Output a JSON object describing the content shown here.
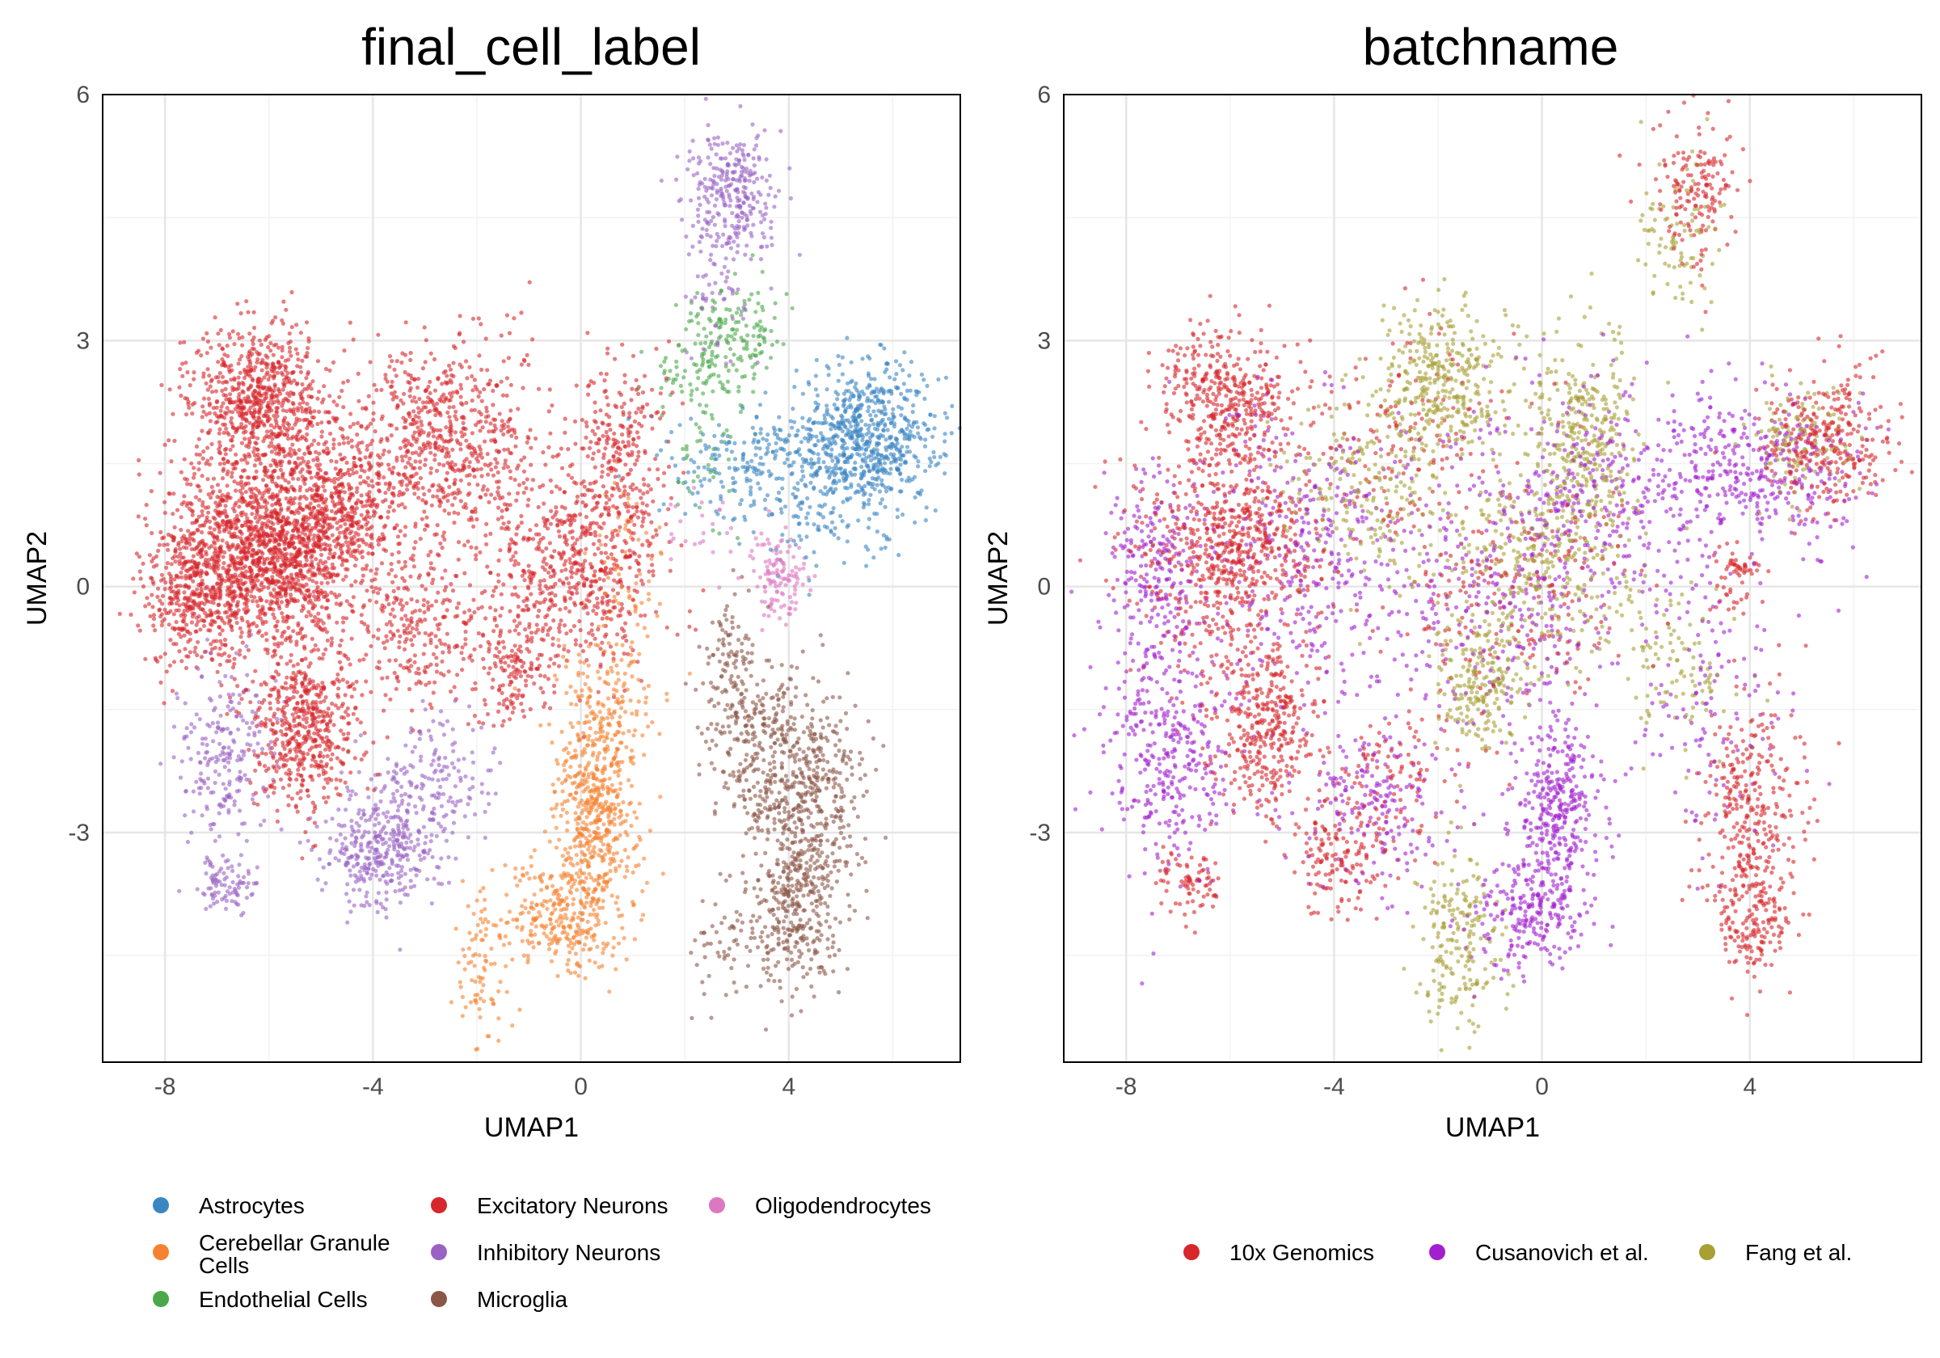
{
  "chart_data": [
    {
      "type": "scatter",
      "title": "final_cell_label",
      "xlabel": "UMAP1",
      "ylabel": "UMAP2",
      "xlim": [
        -9.2,
        7.3
      ],
      "ylim": [
        -5.8,
        6.0
      ],
      "xticks": [
        -8,
        -4,
        0,
        4
      ],
      "xtick_labels": [
        "-8",
        "-4",
        "0",
        "4"
      ],
      "yticks": [
        -3,
        0,
        3,
        6
      ],
      "ytick_labels": [
        "-3",
        "0",
        "3",
        "6"
      ],
      "grid": true,
      "legend_position": "bottom",
      "series": [
        {
          "name": "Astrocytes",
          "color": "#3a86c3",
          "clusters": [
            [
              5.5,
              1.8,
              0.7,
              0.45,
              700
            ],
            [
              3.6,
              1.5,
              0.9,
              0.35,
              250
            ],
            [
              4.6,
              0.8,
              0.7,
              0.3,
              60
            ]
          ]
        },
        {
          "name": "Cerebellar Granule Cells",
          "color": "#f58231",
          "clusters": [
            [
              0.3,
              -2.7,
              0.4,
              0.6,
              450
            ],
            [
              -0.3,
              -4.0,
              0.6,
              0.35,
              320
            ],
            [
              0.4,
              -1.5,
              0.45,
              0.5,
              160
            ],
            [
              -1.9,
              -4.6,
              0.25,
              0.5,
              90
            ],
            [
              0.9,
              0.1,
              0.4,
              0.6,
              80
            ]
          ]
        },
        {
          "name": "Endothelial Cells",
          "color": "#4aa84a",
          "clusters": [
            [
              2.9,
              3.0,
              0.45,
              0.35,
              160
            ],
            [
              2.4,
              1.9,
              0.4,
              0.5,
              60
            ],
            [
              1.8,
              2.6,
              0.4,
              0.2,
              30
            ]
          ]
        },
        {
          "name": "Excitatory Neurons",
          "color": "#d7262c",
          "clusters": [
            [
              -6.0,
              0.5,
              0.95,
              0.65,
              1700
            ],
            [
              -6.2,
              2.3,
              0.6,
              0.45,
              650
            ],
            [
              -2.6,
              1.8,
              0.9,
              0.6,
              650
            ],
            [
              -4.6,
              0.9,
              0.7,
              0.55,
              450
            ],
            [
              -5.3,
              -1.7,
              0.5,
              0.5,
              550
            ],
            [
              -7.5,
              -0.1,
              0.45,
              0.4,
              350
            ],
            [
              -0.2,
              0.2,
              0.9,
              0.6,
              600
            ],
            [
              0.7,
              1.6,
              0.45,
              0.6,
              260
            ],
            [
              -1.2,
              -1.0,
              0.35,
              0.35,
              140
            ],
            [
              -3.0,
              -0.6,
              0.7,
              0.5,
              250
            ]
          ]
        },
        {
          "name": "Inhibitory Neurons",
          "color": "#9a62c4",
          "clusters": [
            [
              2.9,
              4.8,
              0.45,
              0.45,
              300
            ],
            [
              -3.8,
              -3.2,
              0.55,
              0.4,
              380
            ],
            [
              -6.8,
              -3.6,
              0.3,
              0.2,
              90
            ],
            [
              -6.8,
              -2.1,
              0.5,
              0.55,
              220
            ],
            [
              -2.7,
              -2.3,
              0.6,
              0.4,
              140
            ],
            [
              2.6,
              3.4,
              0.3,
              0.4,
              50
            ]
          ]
        },
        {
          "name": "Microglia",
          "color": "#8c5647",
          "clusters": [
            [
              4.3,
              -2.6,
              0.55,
              0.7,
              550
            ],
            [
              4.1,
              -4.0,
              0.4,
              0.45,
              250
            ],
            [
              3.2,
              -1.8,
              0.5,
              0.5,
              200
            ],
            [
              2.9,
              -0.8,
              0.3,
              0.4,
              80
            ],
            [
              3.0,
              -4.3,
              0.4,
              0.4,
              70
            ]
          ]
        },
        {
          "name": "Oligodendrocytes",
          "color": "#dd77c0",
          "clusters": [
            [
              3.8,
              0.1,
              0.3,
              0.25,
              120
            ],
            [
              2.3,
              0.7,
              0.4,
              0.3,
              25
            ]
          ]
        }
      ]
    },
    {
      "type": "scatter",
      "title": "batchname",
      "xlabel": "UMAP1",
      "ylabel": "UMAP2",
      "xlim": [
        -9.2,
        7.3
      ],
      "ylim": [
        -5.8,
        6.0
      ],
      "xticks": [
        -8,
        -4,
        0,
        4
      ],
      "xtick_labels": [
        "-8",
        "-4",
        "0",
        "4"
      ],
      "yticks": [
        -3,
        0,
        3,
        6
      ],
      "ytick_labels": [
        "-3",
        "0",
        "3",
        "6"
      ],
      "grid": true,
      "legend_position": "bottom",
      "series": [
        {
          "name": "10x Genomics",
          "color": "#d7262c",
          "clusters": [
            [
              -6.1,
              2.3,
              0.6,
              0.45,
              400
            ],
            [
              -6.0,
              0.4,
              0.85,
              0.65,
              700
            ],
            [
              -5.3,
              -1.8,
              0.5,
              0.5,
              350
            ],
            [
              -6.8,
              -3.6,
              0.3,
              0.2,
              80
            ],
            [
              -3.9,
              -3.3,
              0.45,
              0.35,
              150
            ],
            [
              4.0,
              -2.7,
              0.5,
              0.7,
              300
            ],
            [
              4.0,
              -4.0,
              0.35,
              0.4,
              160
            ],
            [
              5.5,
              1.8,
              0.6,
              0.4,
              300
            ],
            [
              3.8,
              0.1,
              0.25,
              0.2,
              60
            ],
            [
              3.0,
              4.9,
              0.4,
              0.45,
              160
            ],
            [
              -2.6,
              1.8,
              0.9,
              0.6,
              150
            ],
            [
              -0.5,
              0.0,
              1.2,
              0.8,
              200
            ],
            [
              -2.8,
              -2.4,
              0.6,
              0.45,
              100
            ]
          ]
        },
        {
          "name": "Cusanovich et al.",
          "color": "#a11fcf",
          "clusters": [
            [
              0.3,
              -2.7,
              0.4,
              0.6,
              350
            ],
            [
              -0.3,
              -4.0,
              0.55,
              0.35,
              220
            ],
            [
              -7.2,
              -2.0,
              0.6,
              0.8,
              350
            ],
            [
              -7.5,
              0.2,
              0.5,
              0.6,
              200
            ],
            [
              -4.5,
              0.5,
              1.2,
              0.9,
              400
            ],
            [
              1.0,
              1.0,
              1.4,
              0.8,
              450
            ],
            [
              3.8,
              1.5,
              1.0,
              0.4,
              250
            ],
            [
              -3.2,
              -2.6,
              0.8,
              0.6,
              200
            ],
            [
              -1.0,
              -0.5,
              1.0,
              0.7,
              200
            ],
            [
              5.2,
              1.3,
              0.6,
              0.5,
              90
            ],
            [
              3.2,
              -1.5,
              0.7,
              0.8,
              120
            ]
          ]
        },
        {
          "name": "Fang et al.",
          "color": "#a8a035",
          "clusters": [
            [
              -2.0,
              2.5,
              0.6,
              0.5,
              350
            ],
            [
              0.8,
              1.8,
              0.5,
              0.6,
              300
            ],
            [
              -1.2,
              -1.2,
              0.4,
              0.4,
              200
            ],
            [
              -1.6,
              -4.3,
              0.4,
              0.6,
              200
            ],
            [
              0.0,
              0.3,
              1.0,
              0.6,
              350
            ],
            [
              2.6,
              4.3,
              0.35,
              0.5,
              90
            ],
            [
              5.0,
              1.8,
              0.5,
              0.4,
              120
            ],
            [
              2.5,
              -1.0,
              0.6,
              0.5,
              100
            ],
            [
              -3.5,
              1.2,
              0.8,
              0.6,
              200
            ]
          ]
        }
      ]
    }
  ]
}
